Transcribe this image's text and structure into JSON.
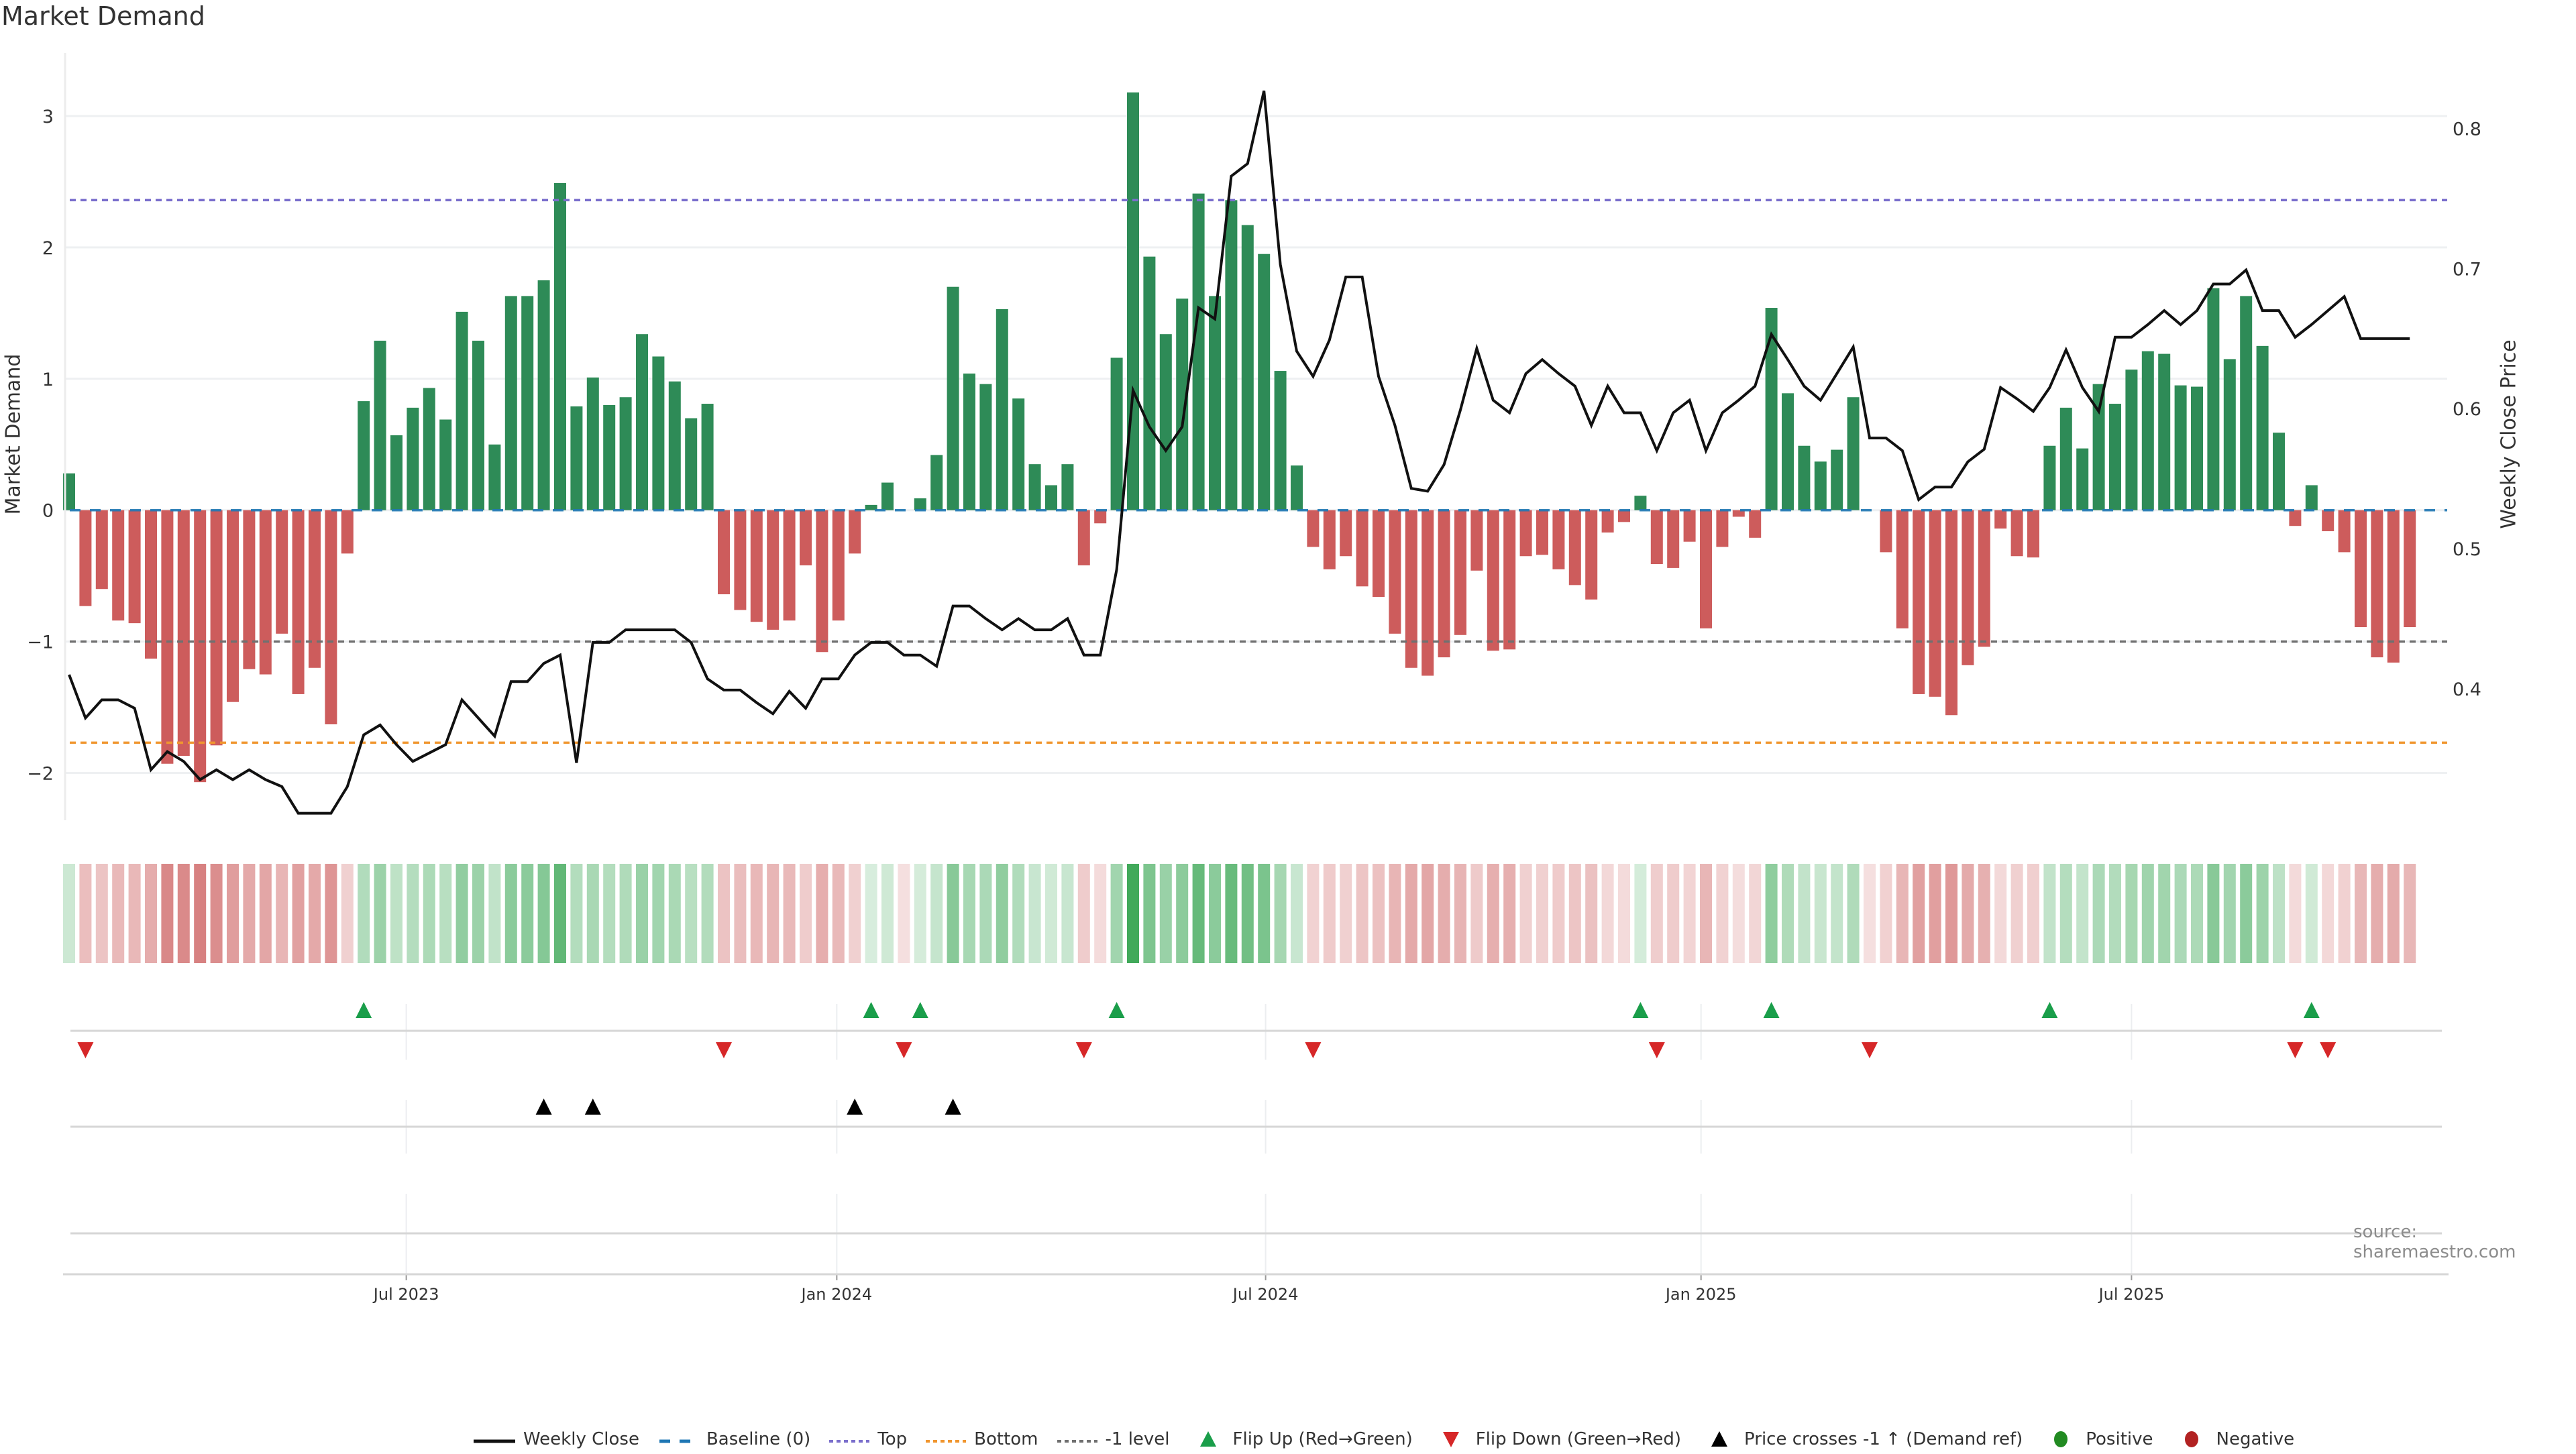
{
  "chart_data": {
    "type": "bar",
    "title": "Market Demand",
    "ylabel": "Market Demand",
    "ylabel_right": "Weekly Close Price",
    "ylim": [
      -2.36,
      3.48
    ],
    "ylim_right": [
      0.306,
      0.854
    ],
    "yticks": [
      {
        "value": -2,
        "label": "−2"
      },
      {
        "value": -1,
        "label": "−1"
      },
      {
        "value": 0,
        "label": "0"
      },
      {
        "value": 1,
        "label": "1"
      },
      {
        "value": 2,
        "label": "2"
      },
      {
        "value": 3,
        "label": "3"
      }
    ],
    "yticks_right": [
      {
        "value": 0.4,
        "label": "0.4"
      },
      {
        "value": 0.5,
        "label": "0.5"
      },
      {
        "value": 0.6,
        "label": "0.6"
      },
      {
        "value": 0.7,
        "label": "0.7"
      },
      {
        "value": 0.8,
        "label": "0.8"
      }
    ],
    "x_unit": "week index (1 = first week shown)",
    "xticks": [
      {
        "week": 21.6,
        "label": "Jul 2023"
      },
      {
        "week": 47.9,
        "label": "Jan 2024"
      },
      {
        "week": 74.1,
        "label": "Jul 2024"
      },
      {
        "week": 100.7,
        "label": "Jan 2025"
      },
      {
        "week": 127.0,
        "label": "Jul 2025"
      }
    ],
    "grid": true,
    "reference_lines": {
      "baseline": 0,
      "top": 2.36,
      "bottom": -1.77,
      "minus_one": -1
    },
    "series": [
      {
        "name": "Market Demand",
        "type": "bar",
        "values": [
          0.28,
          -0.73,
          -0.6,
          -0.84,
          -0.86,
          -1.13,
          -1.93,
          -1.87,
          -2.07,
          -1.79,
          -1.46,
          -1.21,
          -1.25,
          -0.94,
          -1.4,
          -1.2,
          -1.63,
          -0.33,
          0.83,
          1.29,
          0.57,
          0.78,
          0.93,
          0.69,
          1.51,
          1.29,
          0.5,
          1.63,
          1.63,
          1.75,
          2.49,
          0.79,
          1.01,
          0.8,
          0.86,
          1.34,
          1.17,
          0.98,
          0.7,
          0.81,
          -0.64,
          -0.76,
          -0.85,
          -0.91,
          -0.84,
          -0.42,
          -1.08,
          -0.84,
          -0.33,
          0.04,
          0.21,
          0.0,
          0.09,
          0.42,
          1.7,
          1.04,
          0.96,
          1.53,
          0.85,
          0.35,
          0.19,
          0.35,
          -0.42,
          -0.1,
          1.16,
          3.18,
          1.93,
          1.34,
          1.61,
          2.41,
          1.63,
          2.36,
          2.17,
          1.95,
          1.06,
          0.34,
          -0.28,
          -0.45,
          -0.35,
          -0.58,
          -0.66,
          -0.94,
          -1.2,
          -1.26,
          -1.12,
          -0.95,
          -0.46,
          -1.07,
          -1.06,
          -0.35,
          -0.34,
          -0.45,
          -0.57,
          -0.68,
          -0.17,
          -0.09,
          0.11,
          -0.41,
          -0.44,
          -0.24,
          -0.9,
          -0.28,
          -0.05,
          -0.21,
          1.54,
          0.89,
          0.49,
          0.37,
          0.46,
          0.86,
          0.0,
          -0.32,
          -0.9,
          -1.4,
          -1.42,
          -1.56,
          -1.18,
          -1.04,
          -0.14,
          -0.35,
          -0.36,
          0.49,
          0.78,
          0.47,
          0.96,
          0.81,
          1.07,
          1.21,
          1.19,
          0.95,
          0.94,
          1.69,
          1.15,
          1.63,
          1.25,
          0.59,
          -0.12,
          0.19,
          -0.16,
          -0.32,
          -0.89,
          -1.12,
          -1.16,
          -0.89
        ]
      },
      {
        "name": "Weekly Close",
        "type": "line",
        "axis": "right",
        "values": [
          0.41,
          0.379,
          0.392,
          0.392,
          0.386,
          0.342,
          0.355,
          0.348,
          0.335,
          0.342,
          0.335,
          0.342,
          0.335,
          0.33,
          0.311,
          0.311,
          0.311,
          0.33,
          0.367,
          0.374,
          0.36,
          0.348,
          0.354,
          0.36,
          0.392,
          0.379,
          0.366,
          0.405,
          0.405,
          0.418,
          0.424,
          0.347,
          0.433,
          0.433,
          0.442,
          0.442,
          0.442,
          0.442,
          0.433,
          0.407,
          0.399,
          0.399,
          0.39,
          0.382,
          0.398,
          0.386,
          0.407,
          0.407,
          0.424,
          0.433,
          0.433,
          0.424,
          0.424,
          0.416,
          0.459,
          0.459,
          0.45,
          0.442,
          0.45,
          0.442,
          0.442,
          0.45,
          0.424,
          0.424,
          0.485,
          0.613,
          0.587,
          0.57,
          0.587,
          0.672,
          0.664,
          0.766,
          0.775,
          0.827,
          0.703,
          0.641,
          0.623,
          0.649,
          0.694,
          0.694,
          0.623,
          0.588,
          0.543,
          0.541,
          0.56,
          0.599,
          0.643,
          0.606,
          0.597,
          0.625,
          0.635,
          0.625,
          0.616,
          0.588,
          0.616,
          0.597,
          0.597,
          0.57,
          0.597,
          0.606,
          0.57,
          0.597,
          0.606,
          0.616,
          0.653,
          0.635,
          0.616,
          0.606,
          0.625,
          0.644,
          0.579,
          0.579,
          0.57,
          0.535,
          0.544,
          0.544,
          0.562,
          0.571,
          0.615,
          0.607,
          0.598,
          0.615,
          0.642,
          0.615,
          0.598,
          0.651,
          0.651,
          0.66,
          0.67,
          0.66,
          0.67,
          0.689,
          0.689,
          0.699,
          0.67,
          0.67,
          0.651,
          0.66,
          0.67,
          0.68,
          0.65,
          0.65,
          0.65,
          0.65
        ]
      }
    ],
    "flip_up_weeks": [
      19,
      50,
      53,
      65,
      97,
      105,
      122,
      138
    ],
    "flip_down_weeks": [
      2,
      41,
      52,
      63,
      77,
      98,
      111,
      137,
      139
    ],
    "price_cross_weeks": [
      30,
      33,
      49,
      55
    ],
    "legend_position": "bottom-center",
    "legend": [
      {
        "label": "Weekly Close",
        "kind": "line-solid",
        "color": "#111111"
      },
      {
        "label": "Baseline (0)",
        "kind": "line-dashed",
        "color": "#1f77b4"
      },
      {
        "label": "Top",
        "kind": "line-dotted",
        "color": "#7b6fcc"
      },
      {
        "label": "Bottom",
        "kind": "line-dotted",
        "color": "#f0962f"
      },
      {
        "label": "-1 level",
        "kind": "line-dotted",
        "color": "#707070"
      },
      {
        "label": "Flip Up (Red→Green)",
        "kind": "triangle-up",
        "color": "#1a9e4a"
      },
      {
        "label": "Flip Down (Green→Red)",
        "kind": "triangle-down",
        "color": "#d62728"
      },
      {
        "label": "Price crosses -1 ↑ (Demand ref)",
        "kind": "triangle-up",
        "color": "#000000"
      },
      {
        "label": "Positive",
        "kind": "dot",
        "color": "#228b22"
      },
      {
        "label": "Negative",
        "kind": "dot",
        "color": "#b22222"
      }
    ],
    "colors": {
      "positive_bar": "#2e8b57",
      "negative_bar": "#cd5c5c",
      "heat_positive": "#2ca048",
      "heat_negative": "#c85050",
      "grid": "#eef0f2",
      "axis": "#d9d9d9"
    },
    "source": "source: sharemaestro.com"
  }
}
